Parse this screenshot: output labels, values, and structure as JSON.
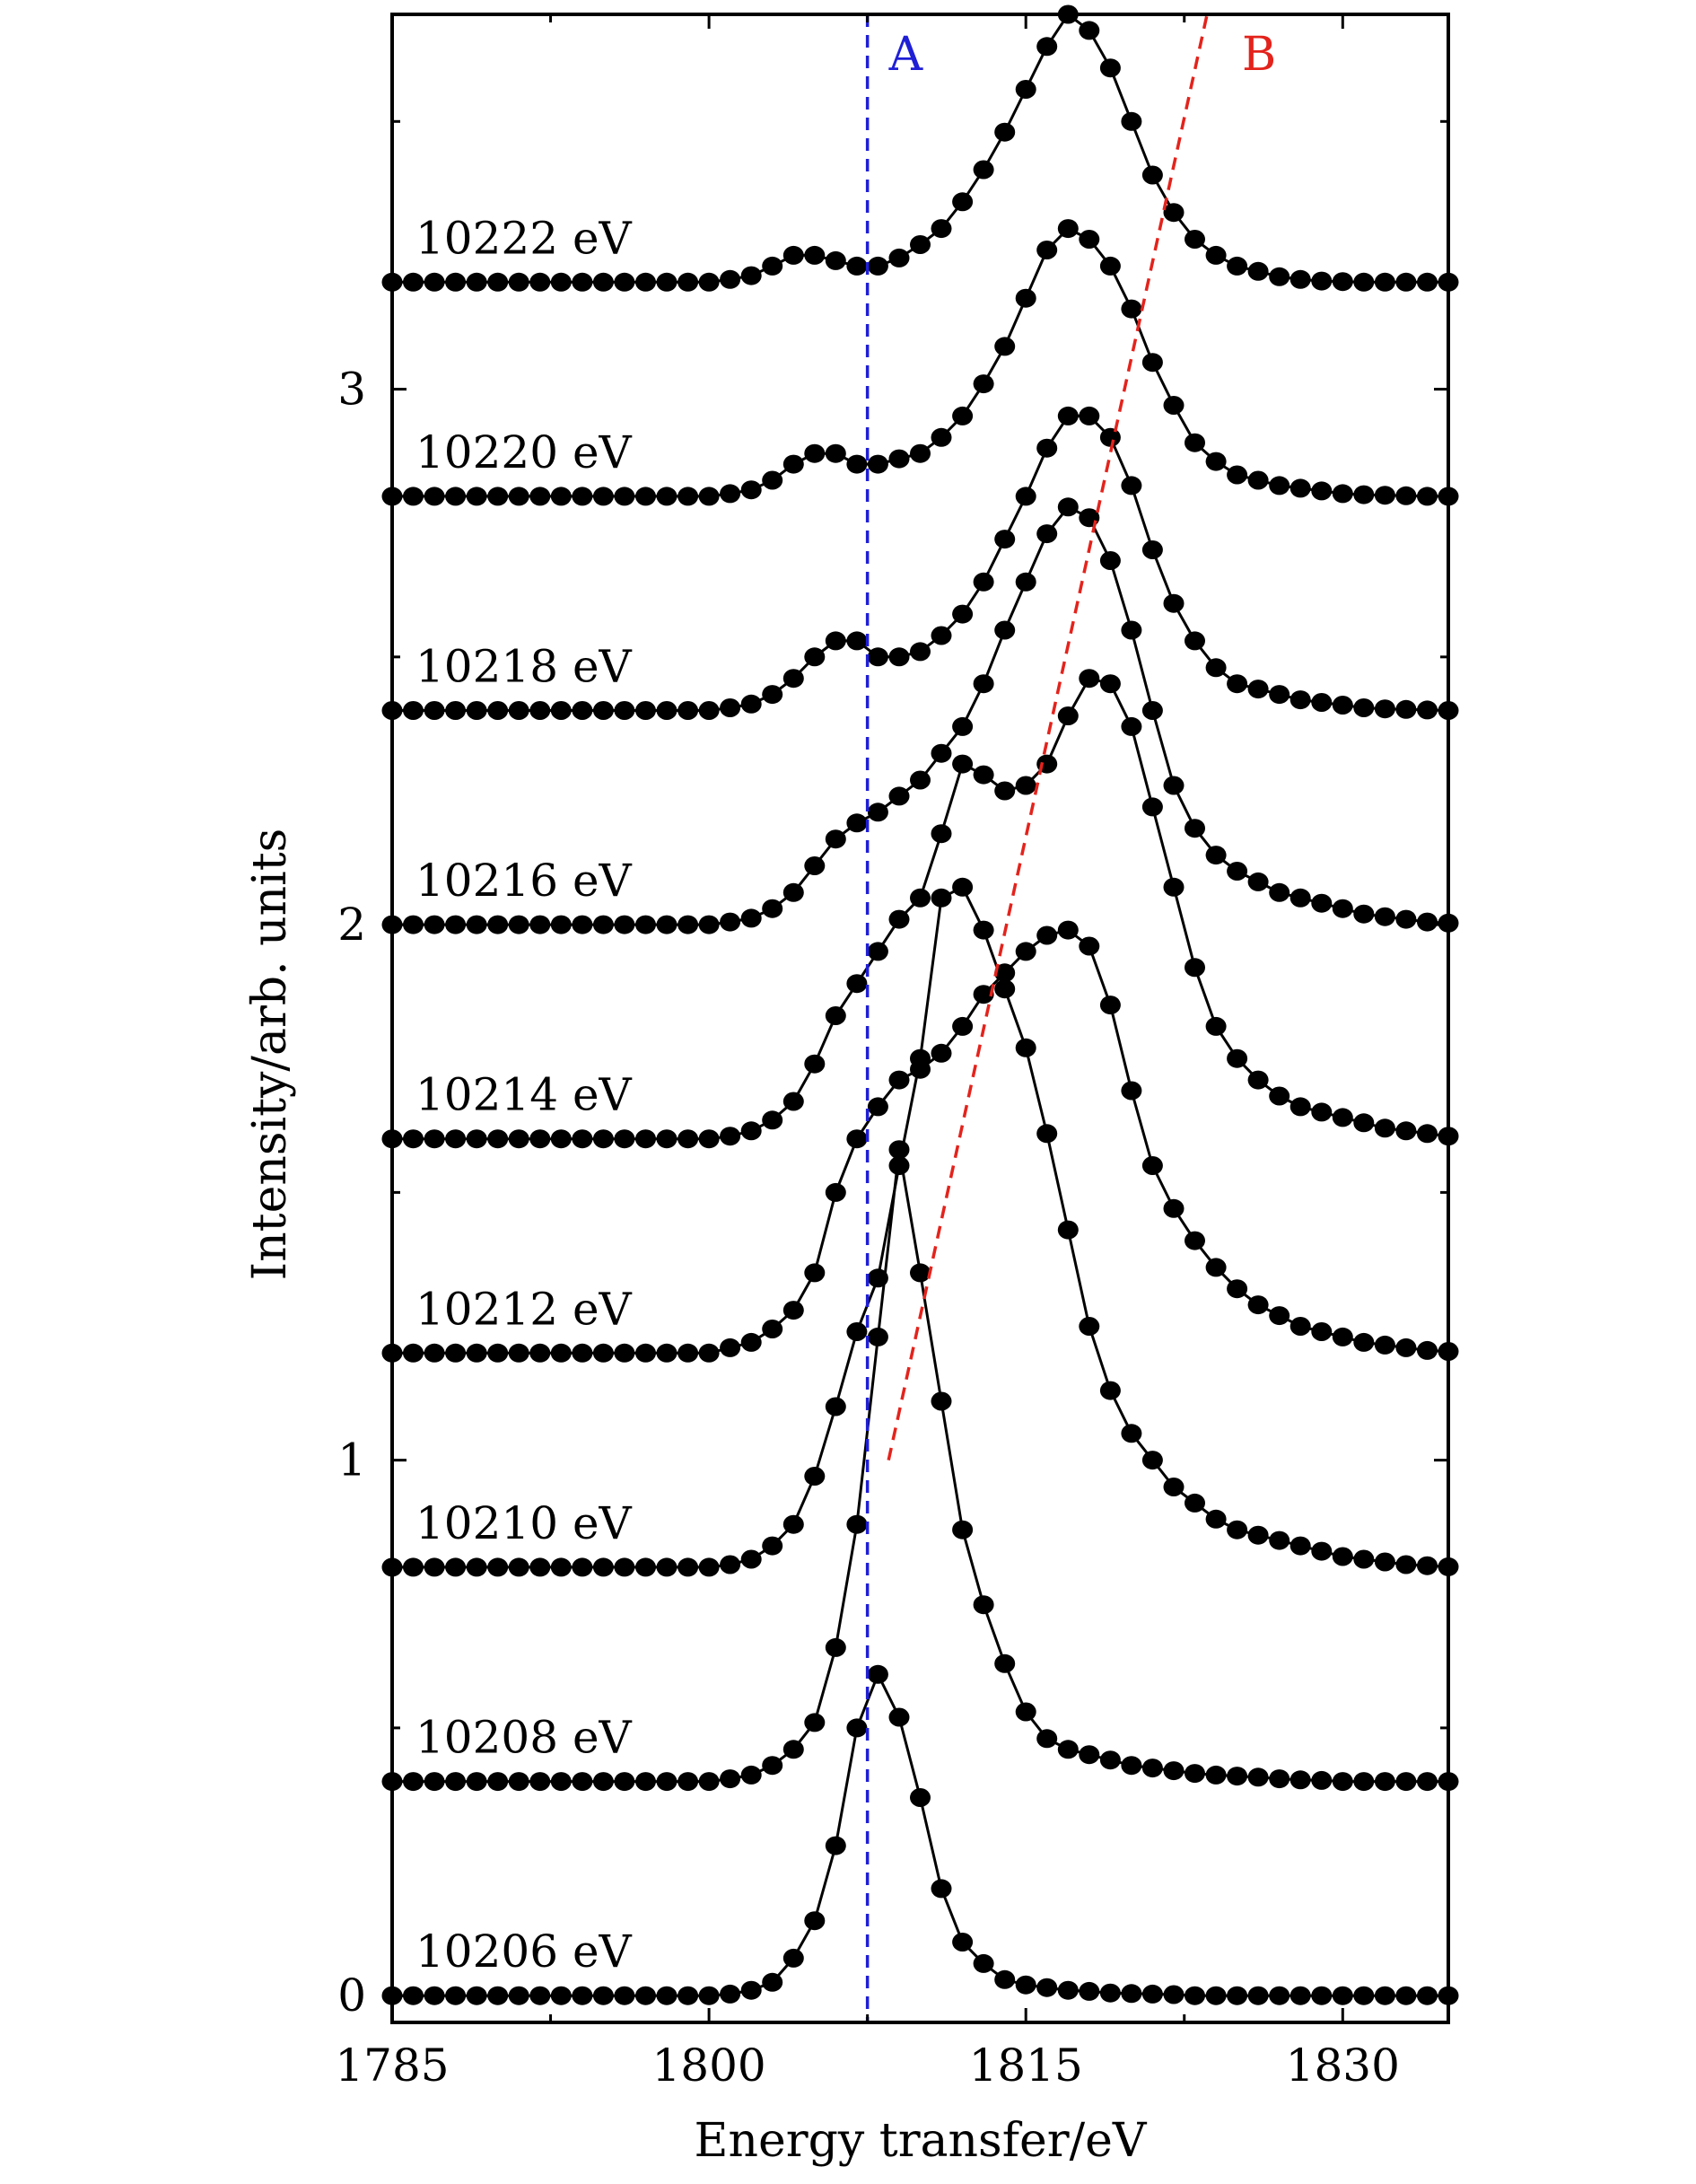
{
  "chart_data": {
    "type": "line",
    "title": "",
    "xlabel": "Energy transfer/eV",
    "ylabel": "Intensity/arb. units",
    "xlim": [
      1785,
      1835
    ],
    "ylim": [
      -0.05,
      3.7
    ],
    "xticks": [
      1785,
      1800,
      1815,
      1830
    ],
    "yticks": [
      0,
      1,
      2,
      3
    ],
    "grid": false,
    "legend": "none",
    "marker": "filled-circle",
    "line_color": "#000000",
    "x_step": 1,
    "x_start": 1785,
    "series": [
      {
        "name": "10206 eV",
        "offset": 0.0,
        "values": [
          0,
          0,
          0,
          0,
          0,
          0,
          0,
          0,
          0,
          0,
          0,
          0,
          0,
          0,
          0,
          0,
          0.003,
          0.01,
          0.025,
          0.07,
          0.14,
          0.28,
          0.5,
          0.6,
          0.52,
          0.37,
          0.2,
          0.1,
          0.06,
          0.03,
          0.02,
          0.015,
          0.01,
          0.008,
          0.005,
          0.004,
          0.003,
          0.002,
          0,
          0,
          0,
          0,
          0,
          0,
          0,
          0,
          0,
          0,
          0,
          0,
          0
        ]
      },
      {
        "name": "10208 eV",
        "offset": 0.4,
        "values": [
          0,
          0,
          0,
          0,
          0,
          0,
          0,
          0,
          0,
          0,
          0,
          0,
          0,
          0,
          0,
          0,
          0.005,
          0.012,
          0.03,
          0.06,
          0.11,
          0.25,
          0.48,
          0.83,
          1.18,
          0.95,
          0.71,
          0.47,
          0.33,
          0.22,
          0.13,
          0.08,
          0.06,
          0.05,
          0.04,
          0.03,
          0.025,
          0.02,
          0.015,
          0.012,
          0.01,
          0.008,
          0.005,
          0.003,
          0.002,
          0,
          0,
          0,
          0,
          0,
          0
        ]
      },
      {
        "name": "10210 eV",
        "offset": 0.8,
        "values": [
          0,
          0,
          0,
          0,
          0,
          0,
          0,
          0,
          0,
          0,
          0,
          0,
          0,
          0,
          0,
          0,
          0.005,
          0.015,
          0.04,
          0.08,
          0.17,
          0.3,
          0.44,
          0.54,
          0.75,
          0.95,
          1.25,
          1.27,
          1.19,
          1.08,
          0.97,
          0.81,
          0.63,
          0.45,
          0.33,
          0.25,
          0.2,
          0.15,
          0.12,
          0.09,
          0.07,
          0.06,
          0.05,
          0.04,
          0.03,
          0.02,
          0.015,
          0.01,
          0.005,
          0.003,
          0.001
        ]
      },
      {
        "name": "10212 eV",
        "offset": 1.2,
        "values": [
          0,
          0,
          0,
          0,
          0,
          0,
          0,
          0,
          0,
          0,
          0,
          0,
          0,
          0,
          0,
          0,
          0.01,
          0.02,
          0.045,
          0.08,
          0.15,
          0.3,
          0.4,
          0.46,
          0.51,
          0.53,
          0.56,
          0.61,
          0.67,
          0.71,
          0.75,
          0.78,
          0.79,
          0.76,
          0.65,
          0.49,
          0.35,
          0.27,
          0.21,
          0.16,
          0.12,
          0.09,
          0.07,
          0.05,
          0.04,
          0.03,
          0.02,
          0.015,
          0.01,
          0.005,
          0.003
        ]
      },
      {
        "name": "10214 eV",
        "offset": 1.6,
        "values": [
          0,
          0,
          0,
          0,
          0,
          0,
          0,
          0,
          0,
          0,
          0,
          0,
          0,
          0,
          0,
          0,
          0.005,
          0.015,
          0.035,
          0.07,
          0.14,
          0.23,
          0.29,
          0.35,
          0.41,
          0.45,
          0.57,
          0.7,
          0.68,
          0.65,
          0.66,
          0.7,
          0.79,
          0.86,
          0.85,
          0.77,
          0.62,
          0.47,
          0.32,
          0.21,
          0.15,
          0.11,
          0.08,
          0.06,
          0.05,
          0.04,
          0.03,
          0.02,
          0.015,
          0.01,
          0.005
        ]
      },
      {
        "name": "10216 eV",
        "offset": 2.0,
        "values": [
          0,
          0,
          0,
          0,
          0,
          0,
          0,
          0,
          0,
          0,
          0,
          0,
          0,
          0,
          0,
          0,
          0.005,
          0.012,
          0.03,
          0.06,
          0.11,
          0.16,
          0.19,
          0.21,
          0.24,
          0.27,
          0.32,
          0.37,
          0.45,
          0.55,
          0.64,
          0.73,
          0.78,
          0.76,
          0.68,
          0.55,
          0.4,
          0.26,
          0.18,
          0.13,
          0.1,
          0.08,
          0.06,
          0.05,
          0.04,
          0.03,
          0.02,
          0.015,
          0.01,
          0.005,
          0.003
        ]
      },
      {
        "name": "10218 eV",
        "offset": 2.4,
        "values": [
          0,
          0,
          0,
          0,
          0,
          0,
          0,
          0,
          0,
          0,
          0,
          0,
          0,
          0,
          0,
          0,
          0.005,
          0.012,
          0.03,
          0.06,
          0.1,
          0.13,
          0.13,
          0.1,
          0.1,
          0.11,
          0.14,
          0.18,
          0.24,
          0.32,
          0.4,
          0.49,
          0.55,
          0.55,
          0.51,
          0.42,
          0.3,
          0.2,
          0.13,
          0.08,
          0.05,
          0.04,
          0.03,
          0.02,
          0.015,
          0.01,
          0.005,
          0.003,
          0.002,
          0.001,
          0
        ]
      },
      {
        "name": "10220 eV",
        "offset": 2.8,
        "values": [
          0,
          0,
          0,
          0,
          0,
          0,
          0,
          0,
          0,
          0,
          0,
          0,
          0,
          0,
          0,
          0,
          0.005,
          0.012,
          0.03,
          0.06,
          0.08,
          0.08,
          0.06,
          0.06,
          0.07,
          0.08,
          0.11,
          0.15,
          0.21,
          0.28,
          0.37,
          0.46,
          0.5,
          0.48,
          0.43,
          0.35,
          0.25,
          0.17,
          0.1,
          0.065,
          0.04,
          0.03,
          0.02,
          0.015,
          0.01,
          0.005,
          0.003,
          0.002,
          0.001,
          0,
          0
        ]
      },
      {
        "name": "10222 eV",
        "offset": 3.2,
        "values": [
          0,
          0,
          0,
          0,
          0,
          0,
          0,
          0,
          0,
          0,
          0,
          0,
          0,
          0,
          0,
          0,
          0.005,
          0.012,
          0.03,
          0.05,
          0.05,
          0.04,
          0.03,
          0.03,
          0.045,
          0.07,
          0.1,
          0.15,
          0.21,
          0.28,
          0.36,
          0.44,
          0.5,
          0.47,
          0.4,
          0.3,
          0.2,
          0.13,
          0.08,
          0.05,
          0.03,
          0.02,
          0.01,
          0.005,
          0.002,
          0.001,
          0,
          0,
          0,
          0,
          0
        ]
      }
    ],
    "annotations": [
      {
        "label": "A",
        "type": "vertical-dashed",
        "x": 1807.5,
        "color": "#1f1fd6"
      },
      {
        "label": "B",
        "type": "dashed-line",
        "x": [
          1808.5,
          1823.3
        ],
        "y": [
          1.0,
          3.65
        ],
        "color": "#e3231c"
      }
    ]
  }
}
